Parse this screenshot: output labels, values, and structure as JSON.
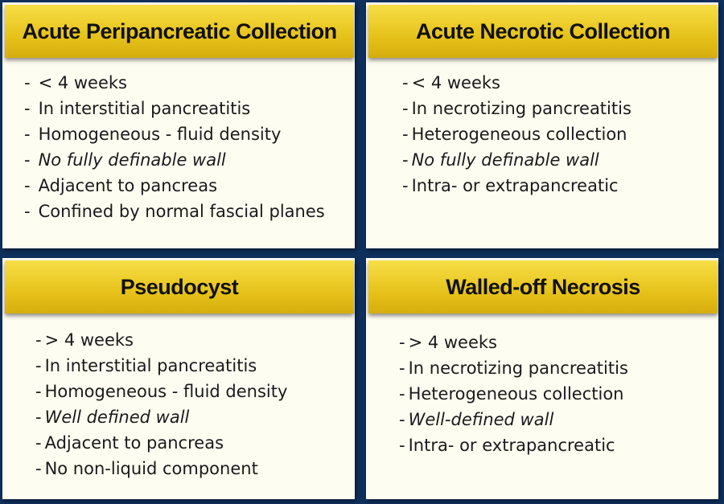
{
  "panels": [
    {
      "title": "Acute  Peripancreatic Collection",
      "items": [
        {
          "text": "< 4 weeks",
          "italic": false
        },
        {
          "text": "In interstitial pancreatitis",
          "italic": false
        },
        {
          "text": "Homogeneous - fluid density",
          "italic": false
        },
        {
          "text": "No fully definable wall",
          "italic": true
        },
        {
          "text": "Adjacent to pancreas",
          "italic": false
        },
        {
          "text": "Confined by normal fascial planes",
          "italic": false
        }
      ]
    },
    {
      "title": "Acute Necrotic Collection",
      "items": [
        {
          "text": "< 4 weeks",
          "italic": false
        },
        {
          "text": "In necrotizing pancreatitis",
          "italic": false
        },
        {
          "text": "Heterogeneous collection",
          "italic": false
        },
        {
          "text": "No fully definable wall",
          "italic": true
        },
        {
          "text": "Intra- or extrapancreatic",
          "italic": false
        }
      ]
    },
    {
      "title": "Pseudocyst",
      "items": [
        {
          "text": "> 4 weeks",
          "italic": false
        },
        {
          "text": "In interstitial pancreatitis",
          "italic": false
        },
        {
          "text": "Homogeneous - fluid density",
          "italic": false
        },
        {
          "text": "Well defined wall",
          "italic": true
        },
        {
          "text": "Adjacent to pancreas",
          "italic": false
        },
        {
          "text": "No non-liquid component",
          "italic": false
        }
      ]
    },
    {
      "title": "Walled-off Necrosis",
      "items": [
        {
          "text": "> 4 weeks",
          "italic": false
        },
        {
          "text": "In necrotizing pancreatitis",
          "italic": false
        },
        {
          "text": "Heterogeneous collection",
          "italic": false
        },
        {
          "text": "Well-defined wall",
          "italic": true
        },
        {
          "text": "Intra- or extrapancreatic",
          "italic": false
        }
      ]
    }
  ],
  "bullet": "-",
  "colors": {
    "background": "#0f2f5c",
    "card": "#fdfdf2",
    "header": "#e6c21a"
  }
}
